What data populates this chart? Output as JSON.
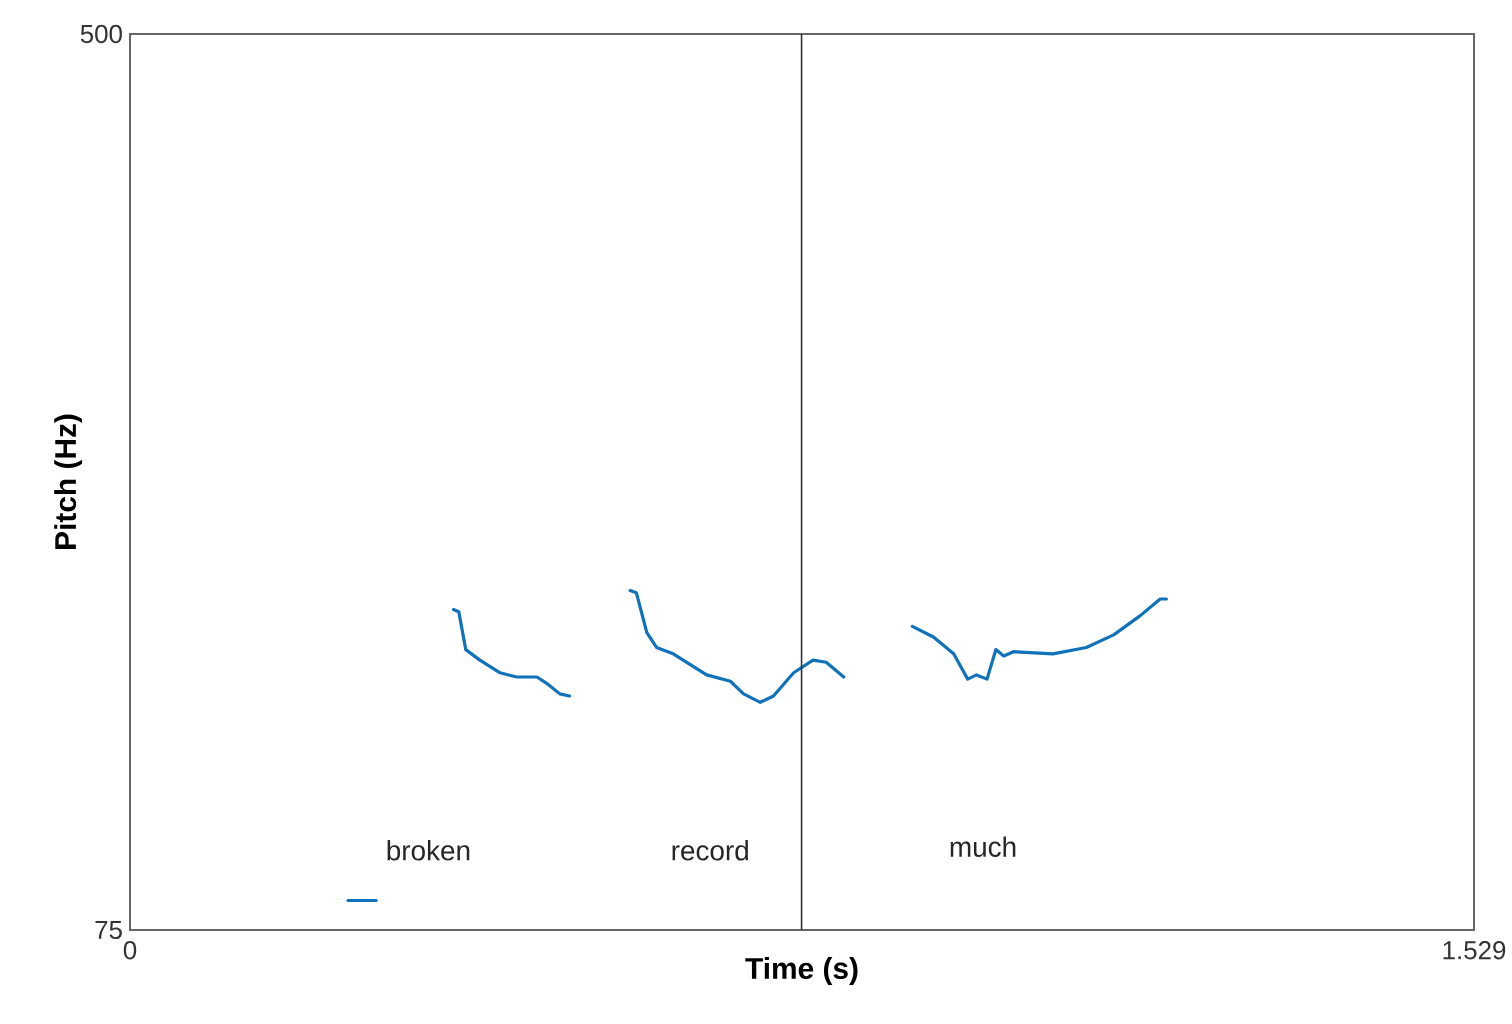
{
  "chart_data": {
    "type": "line",
    "xlabel": "Time (s)",
    "ylabel": "Pitch (Hz)",
    "xlim": [
      0,
      1.529
    ],
    "ylim": [
      75,
      500
    ],
    "xticks": [
      0,
      1.529
    ],
    "yticks": [
      75,
      500
    ],
    "marker": "none",
    "line_style": "solid",
    "x": [
      0.248,
      0.28,
      null,
      0.368,
      0.374,
      0.382,
      0.398,
      0.421,
      0.44,
      0.463,
      0.474,
      0.489,
      0.5,
      null,
      0.569,
      0.576,
      0.588,
      0.599,
      0.618,
      0.656,
      0.683,
      0.698,
      0.717,
      0.732,
      0.755,
      0.777,
      0.792,
      0.812,
      null,
      0.89,
      0.914,
      0.937,
      0.953,
      0.963,
      0.975,
      0.985,
      0.994,
      1.005,
      1.05,
      1.088,
      1.119,
      1.149,
      1.172,
      1.179
    ],
    "series": [
      {
        "color": "#0f72ba",
        "values": [
          89,
          89,
          null,
          227,
          226,
          208,
          203,
          197,
          195,
          195,
          192,
          187,
          186,
          null,
          236,
          235,
          216,
          209,
          206,
          196,
          193,
          187,
          183,
          186,
          197,
          203,
          202,
          195,
          null,
          219,
          214,
          206,
          194,
          196,
          194,
          208,
          205,
          207,
          206,
          209,
          215,
          224,
          232,
          232
        ]
      }
    ],
    "ref_lines": [
      {
        "axis": "x",
        "value": 0.764,
        "color": "#333333",
        "line_style": "solid"
      }
    ],
    "annotations": [
      "broken",
      "record",
      "much"
    ]
  }
}
